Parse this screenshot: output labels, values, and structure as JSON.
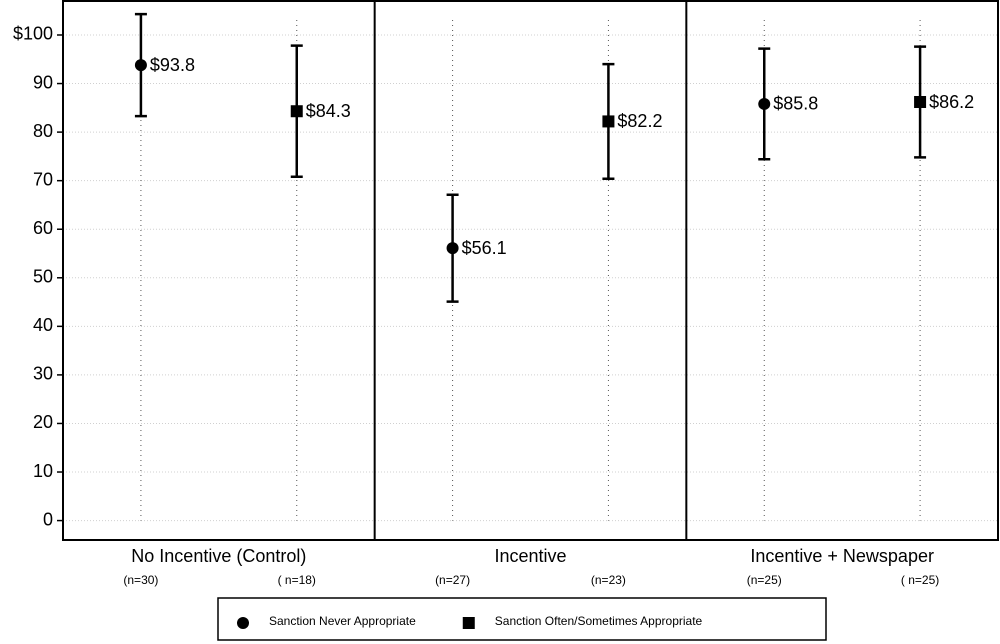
{
  "chart_data": {
    "type": "errorbar",
    "categories": [
      "No Incentive (Control)",
      "Incentive",
      "Incentive + Newspaper"
    ],
    "series": [
      {
        "name": "Sanction Never Appropriate",
        "color": "#000000",
        "marker": "circle",
        "values": [
          93.8,
          56.1,
          85.8
        ],
        "value_labels": [
          "$93.8",
          "$56.1",
          "$85.8"
        ],
        "errors": [
          10.5,
          11,
          11.4
        ],
        "sample_labels": [
          "(n=30)",
          "(n=27)",
          "(n=25)"
        ]
      },
      {
        "name": "Sanction Often/Sometimes Appropriate",
        "color": "#000000",
        "marker": "square",
        "values": [
          84.3,
          82.2,
          86.2
        ],
        "value_labels": [
          "$84.3",
          "$82.2",
          "$86.2"
        ],
        "errors": [
          13.5,
          11.8,
          11.4
        ],
        "sample_labels": [
          "( n=18)",
          "(n=23)",
          "( n=25)"
        ]
      }
    ],
    "ylim": [
      -4,
      107
    ],
    "yticks": [
      0,
      10,
      20,
      30,
      40,
      50,
      60,
      70,
      80,
      90,
      {
        "value": 100,
        "label": "$100"
      }
    ],
    "grid": true,
    "legend": "bottom"
  }
}
